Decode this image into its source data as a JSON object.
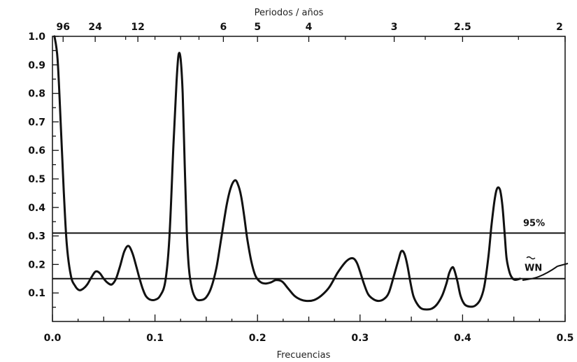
{
  "chart_data": {
    "type": "line",
    "title": "",
    "xlabel": "Frecuencias",
    "ylabel": "",
    "top_axis_label": "Periodos / años",
    "xlim": [
      0,
      0.5
    ],
    "ylim": [
      0,
      1.0
    ],
    "x_ticks": [
      {
        "value": 0.0,
        "label": "0.0"
      },
      {
        "value": 0.1,
        "label": "0.1"
      },
      {
        "value": 0.2,
        "label": "0.2"
      },
      {
        "value": 0.3,
        "label": "0.3"
      },
      {
        "value": 0.4,
        "label": "0.4"
      },
      {
        "value": 0.5,
        "label": "0.5"
      }
    ],
    "y_ticks": [
      {
        "value": 0.1,
        "label": "0.1"
      },
      {
        "value": 0.2,
        "label": "0.2"
      },
      {
        "value": 0.3,
        "label": "0.3"
      },
      {
        "value": 0.4,
        "label": "0.4"
      },
      {
        "value": 0.5,
        "label": "0.5"
      },
      {
        "value": 0.6,
        "label": "0.6"
      },
      {
        "value": 0.7,
        "label": "0.7"
      },
      {
        "value": 0.8,
        "label": "0.8"
      },
      {
        "value": 0.9,
        "label": "0.9"
      },
      {
        "value": 1.0,
        "label": "1.0"
      }
    ],
    "top_ticks": [
      {
        "value": 0.0104,
        "label": "96"
      },
      {
        "value": 0.0417,
        "label": "24"
      },
      {
        "value": 0.0833,
        "label": "12"
      },
      {
        "value": 0.1667,
        "label": "6"
      },
      {
        "value": 0.2,
        "label": "5"
      },
      {
        "value": 0.25,
        "label": "4"
      },
      {
        "value": 0.3333,
        "label": "3"
      },
      {
        "value": 0.4,
        "label": "2.5"
      },
      {
        "value": 0.5,
        "label": "2"
      }
    ],
    "top_minor_ticks": [
      0.0714,
      0.1,
      0.125,
      0.1429,
      0.2857,
      0.3636,
      0.4545
    ],
    "reference_lines": [
      {
        "value": 0.31,
        "label": "95%"
      },
      {
        "value": 0.15,
        "label": "WN"
      }
    ],
    "grid": false,
    "series": [
      {
        "x": [
          0.002,
          0.005,
          0.008,
          0.011,
          0.014,
          0.018,
          0.022,
          0.026,
          0.03,
          0.034,
          0.038,
          0.042,
          0.046,
          0.05,
          0.054,
          0.058,
          0.062,
          0.066,
          0.07,
          0.074,
          0.078,
          0.082,
          0.085,
          0.088,
          0.091,
          0.095,
          0.1,
          0.105,
          0.11,
          0.114,
          0.118,
          0.121,
          0.123,
          0.125,
          0.127,
          0.129,
          0.131,
          0.133,
          0.136,
          0.14,
          0.145,
          0.15,
          0.155,
          0.16,
          0.165,
          0.17,
          0.174,
          0.178,
          0.181,
          0.184,
          0.187,
          0.19,
          0.194,
          0.198,
          0.203,
          0.208,
          0.213,
          0.218,
          0.224,
          0.23,
          0.236,
          0.242,
          0.248,
          0.255,
          0.262,
          0.27,
          0.278,
          0.285,
          0.29,
          0.294,
          0.297,
          0.3,
          0.304,
          0.308,
          0.313,
          0.318,
          0.323,
          0.328,
          0.333,
          0.337,
          0.34,
          0.343,
          0.346,
          0.349,
          0.352,
          0.356,
          0.36,
          0.365,
          0.37,
          0.375,
          0.38,
          0.384,
          0.387,
          0.39,
          0.392,
          0.395,
          0.398,
          0.402,
          0.407,
          0.412,
          0.417,
          0.421,
          0.425,
          0.428,
          0.431,
          0.433,
          0.435,
          0.437,
          0.439,
          0.441,
          0.443,
          0.446,
          0.449,
          0.452,
          0.456
        ],
        "y": [
          1.0,
          0.92,
          0.7,
          0.46,
          0.27,
          0.16,
          0.125,
          0.11,
          0.115,
          0.13,
          0.155,
          0.175,
          0.17,
          0.15,
          0.135,
          0.13,
          0.15,
          0.195,
          0.245,
          0.265,
          0.24,
          0.19,
          0.15,
          0.115,
          0.09,
          0.077,
          0.076,
          0.09,
          0.14,
          0.29,
          0.62,
          0.84,
          0.935,
          0.92,
          0.8,
          0.55,
          0.32,
          0.19,
          0.115,
          0.08,
          0.075,
          0.085,
          0.12,
          0.19,
          0.3,
          0.41,
          0.47,
          0.495,
          0.48,
          0.44,
          0.37,
          0.29,
          0.21,
          0.16,
          0.138,
          0.133,
          0.137,
          0.145,
          0.14,
          0.115,
          0.09,
          0.077,
          0.072,
          0.075,
          0.09,
          0.12,
          0.17,
          0.205,
          0.22,
          0.22,
          0.205,
          0.175,
          0.13,
          0.095,
          0.078,
          0.072,
          0.078,
          0.1,
          0.16,
          0.21,
          0.245,
          0.24,
          0.2,
          0.14,
          0.09,
          0.06,
          0.045,
          0.042,
          0.045,
          0.06,
          0.09,
          0.13,
          0.17,
          0.19,
          0.18,
          0.14,
          0.09,
          0.06,
          0.052,
          0.055,
          0.075,
          0.12,
          0.22,
          0.33,
          0.42,
          0.46,
          0.47,
          0.455,
          0.4,
          0.31,
          0.22,
          0.17,
          0.15,
          0.146,
          0.15
        ]
      }
    ]
  }
}
